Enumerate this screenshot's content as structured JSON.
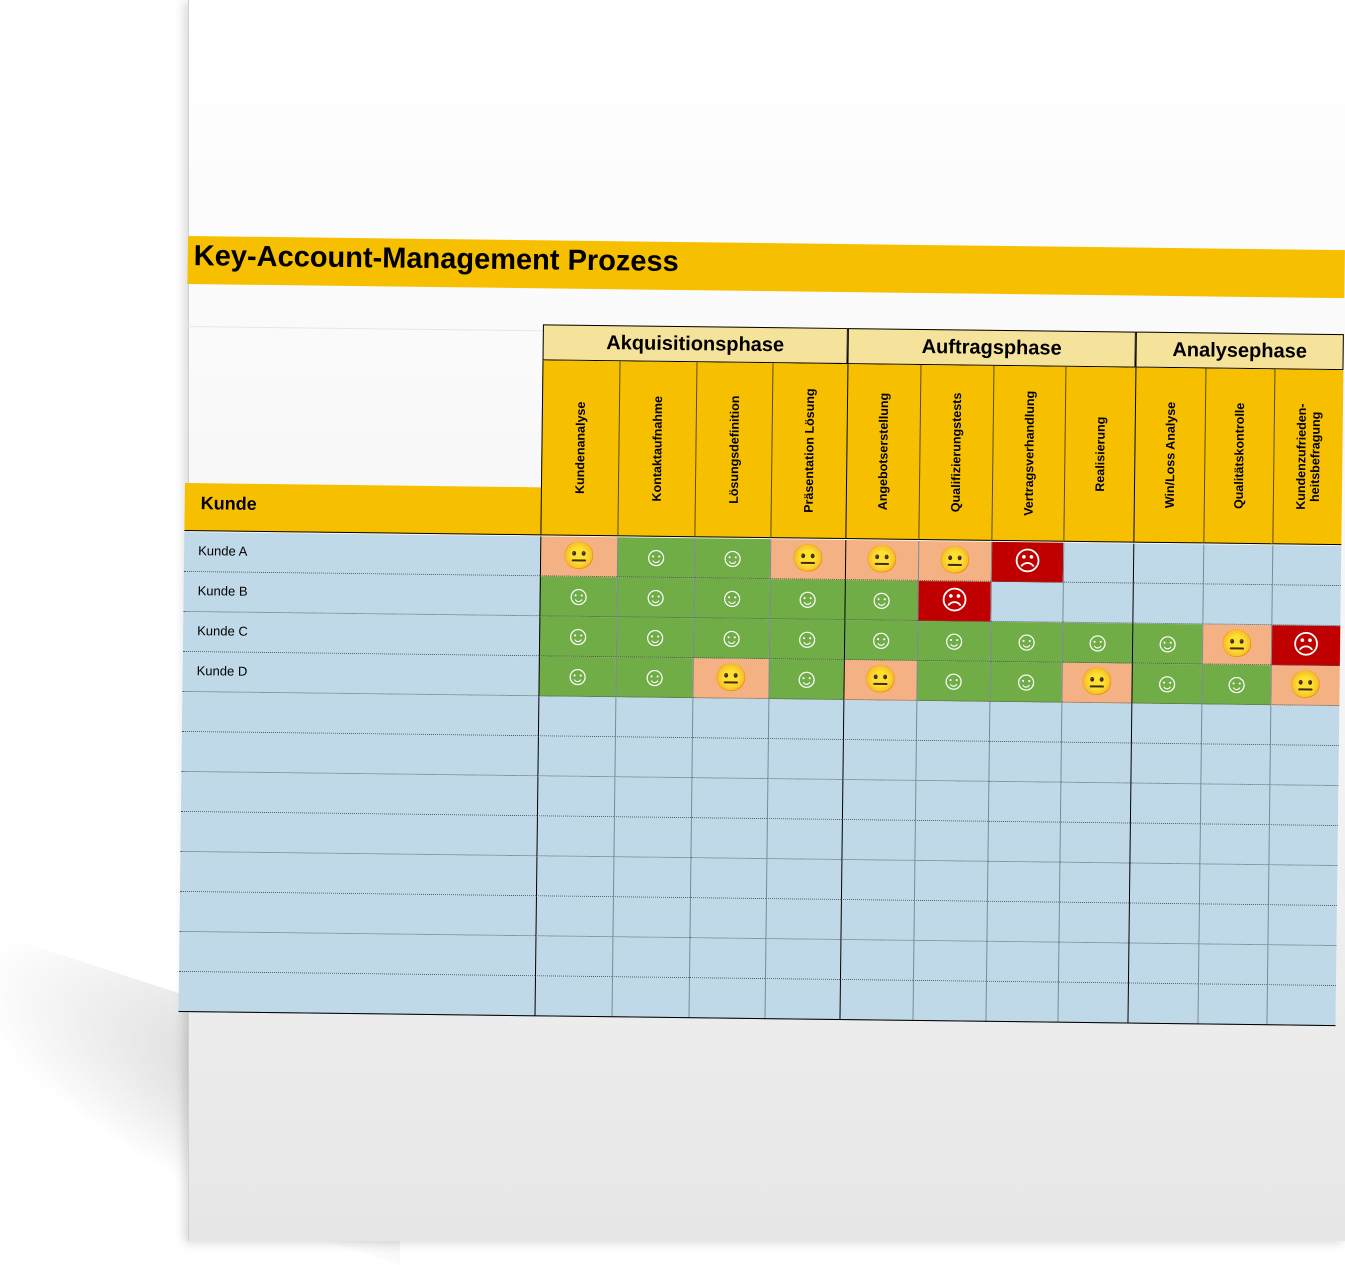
{
  "title": "Key-Account-Management Prozess",
  "customer_header": "Kunde",
  "phases": [
    {
      "label": "Akquisitionsphase"
    },
    {
      "label": "Auftragsphase"
    },
    {
      "label": "Analysephase"
    }
  ],
  "columns": [
    {
      "label": "Kundenanalyse"
    },
    {
      "label": "Kontaktaufnahme"
    },
    {
      "label": "Lösungsdefinition"
    },
    {
      "label": "Präsentation Lösung"
    },
    {
      "label": "Angebotserstellung"
    },
    {
      "label": "Qualifizierungstests"
    },
    {
      "label": "Vertragsverhandlung"
    },
    {
      "label": "Realisierung"
    },
    {
      "label": "Win/Loss Analyse"
    },
    {
      "label": "Qualitätskontrolle"
    },
    {
      "label": "Kundenzufrieden-\nheitsbefragung"
    }
  ],
  "rows": [
    {
      "label": "Kunde A",
      "status": [
        "neutral",
        "happy",
        "happy",
        "neutral",
        "neutral",
        "neutral",
        "sad",
        "",
        "",
        "",
        ""
      ]
    },
    {
      "label": "Kunde B",
      "status": [
        "happy",
        "happy",
        "happy",
        "happy",
        "happy",
        "sad",
        "",
        "",
        "",
        "",
        ""
      ]
    },
    {
      "label": "Kunde C",
      "status": [
        "happy",
        "happy",
        "happy",
        "happy",
        "happy",
        "happy",
        "happy",
        "happy",
        "happy",
        "neutral",
        "sad"
      ]
    },
    {
      "label": "Kunde D",
      "status": [
        "happy",
        "happy",
        "neutral",
        "happy",
        "neutral",
        "happy",
        "happy",
        "neutral",
        "happy",
        "happy",
        "neutral"
      ]
    },
    {
      "label": "",
      "status": [
        "",
        "",
        "",
        "",
        "",
        "",
        "",
        "",
        "",
        "",
        ""
      ]
    },
    {
      "label": "",
      "status": [
        "",
        "",
        "",
        "",
        "",
        "",
        "",
        "",
        "",
        "",
        ""
      ]
    },
    {
      "label": "",
      "status": [
        "",
        "",
        "",
        "",
        "",
        "",
        "",
        "",
        "",
        "",
        ""
      ]
    },
    {
      "label": "",
      "status": [
        "",
        "",
        "",
        "",
        "",
        "",
        "",
        "",
        "",
        "",
        ""
      ]
    },
    {
      "label": "",
      "status": [
        "",
        "",
        "",
        "",
        "",
        "",
        "",
        "",
        "",
        "",
        ""
      ]
    },
    {
      "label": "",
      "status": [
        "",
        "",
        "",
        "",
        "",
        "",
        "",
        "",
        "",
        "",
        ""
      ]
    },
    {
      "label": "",
      "status": [
        "",
        "",
        "",
        "",
        "",
        "",
        "",
        "",
        "",
        "",
        ""
      ]
    },
    {
      "label": "",
      "status": [
        "",
        "",
        "",
        "",
        "",
        "",
        "",
        "",
        "",
        "",
        ""
      ]
    }
  ],
  "status_legend": {
    "happy": {
      "icon": "smiley-happy-icon",
      "glyph": "☺",
      "color": "#70ad47"
    },
    "neutral": {
      "icon": "smiley-neutral-icon",
      "glyph": "😐",
      "color": "#f4b183"
    },
    "sad": {
      "icon": "smiley-sad-icon",
      "glyph": "☹",
      "color": "#c00000"
    }
  },
  "colors": {
    "header_yellow": "#f6bf00",
    "phase_yellow": "#f5e29b",
    "row_blue": "#c0d9e8"
  }
}
